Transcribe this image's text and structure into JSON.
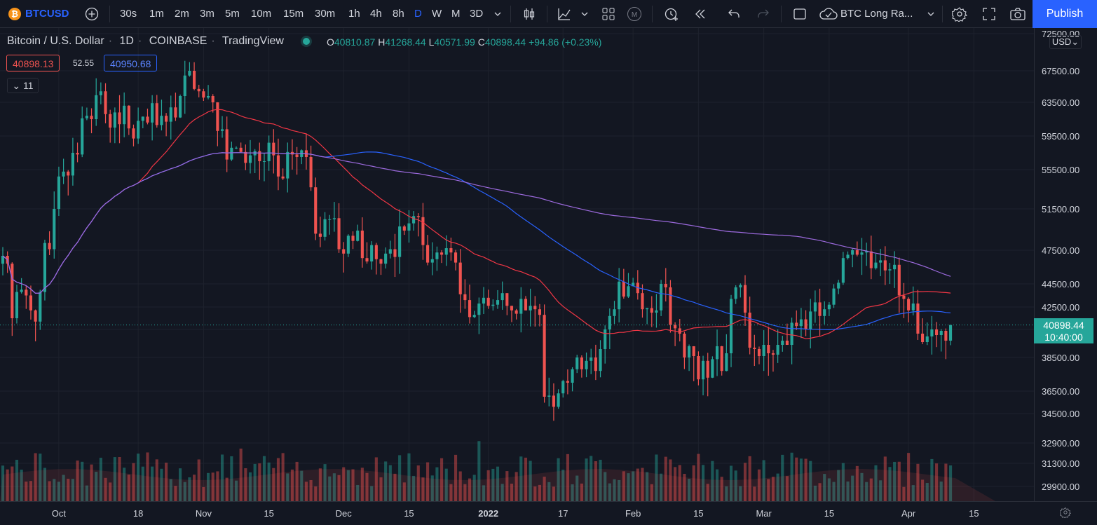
{
  "toolbar": {
    "symbol": "BTCUSD",
    "intervals": [
      "30s",
      "1m",
      "2m",
      "3m",
      "5m",
      "10m",
      "15m",
      "30m",
      "1h",
      "4h",
      "8h",
      "D",
      "W",
      "M",
      "3D"
    ],
    "active_interval": "D",
    "layout_name": "BTC Long Ra...",
    "publish_label": "Publish"
  },
  "legend": {
    "title": "Bitcoin / U.S. Dollar",
    "interval": "1D",
    "exchange": "COINBASE",
    "provider": "TradingView",
    "open_label": "O",
    "open": "40810.87",
    "high_label": "H",
    "high": "41268.44",
    "low_label": "L",
    "low": "40571.99",
    "close_label": "C",
    "close": "40898.44",
    "change": "+94.86 (+0.23%)",
    "bid": "40898.13",
    "spread": "52.55",
    "ask": "40950.68",
    "indicators_count": "11"
  },
  "price_axis": {
    "currency": "USD",
    "last_price": "40898.44",
    "countdown": "10:40:00"
  },
  "colors": {
    "up": "#26a69a",
    "down": "#ef5350",
    "ma_red": "#f23645",
    "ma_blue": "#2962ff",
    "ma_purple": "#9c6ade",
    "background": "#131722"
  },
  "chart_data": {
    "type": "candlestick",
    "title": "Bitcoin / U.S. Dollar",
    "interval": "1D",
    "ylim": [
      29000,
      72500
    ],
    "y_ticks": [
      "72500.00",
      "67500.00",
      "63500.00",
      "59500.00",
      "55500.00",
      "51500.00",
      "47500.00",
      "44500.00",
      "42500.00",
      "40500.00",
      "38500.00",
      "36500.00",
      "34500.00",
      "32900.00",
      "31300.00",
      "29900.00"
    ],
    "x_ticks": [
      {
        "label": "Oct",
        "day": "2021-10-01"
      },
      {
        "label": "18",
        "day": "2021-10-18"
      },
      {
        "label": "Nov",
        "day": "2021-11-01"
      },
      {
        "label": "15",
        "day": "2021-11-15"
      },
      {
        "label": "Dec",
        "day": "2021-12-01"
      },
      {
        "label": "15",
        "day": "2021-12-15"
      },
      {
        "label": "2022",
        "day": "2022-01-01"
      },
      {
        "label": "17",
        "day": "2022-01-17"
      },
      {
        "label": "Feb",
        "day": "2022-02-01"
      },
      {
        "label": "15",
        "day": "2022-02-15"
      },
      {
        "label": "Mar",
        "day": "2022-03-01"
      },
      {
        "label": "15",
        "day": "2022-03-15"
      },
      {
        "label": "Apr",
        "day": "2022-04-01"
      },
      {
        "label": "15",
        "day": "2022-04-15"
      }
    ],
    "closes": [
      47000,
      46300,
      41500,
      43800,
      44000,
      43500,
      42200,
      41200,
      43800,
      48200,
      47600,
      51500,
      54800,
      55300,
      54900,
      57500,
      57300,
      61600,
      61900,
      61500,
      64400,
      64900,
      62100,
      60500,
      62300,
      60900,
      63100,
      60400,
      59200,
      61300,
      61800,
      61100,
      63400,
      60800,
      61900,
      61200,
      62900,
      61700,
      64300,
      66900,
      67500,
      65200,
      64900,
      64100,
      64300,
      63500,
      60100,
      60300,
      56700,
      58100,
      58100,
      57600,
      56300,
      57200,
      57700,
      56500,
      56500,
      58700,
      57200,
      54800,
      54600,
      57600,
      57300,
      57000,
      57800,
      57000,
      53700,
      49100,
      48800,
      50500,
      50500,
      50600,
      47600,
      47200,
      48900,
      48400,
      49400,
      46800,
      46500,
      48000,
      46700,
      46300,
      47200,
      47600,
      46900,
      49800,
      49400,
      50100,
      50800,
      50700,
      48000,
      46400,
      46700,
      47300,
      47100,
      47700,
      47300,
      46400,
      43600,
      43100,
      41600,
      41800,
      42800,
      43300,
      42600,
      42700,
      43100,
      43700,
      42600,
      42200,
      41900,
      43200,
      42200,
      42600,
      42300,
      41800,
      36000,
      36100,
      35100,
      36300,
      37100,
      37000,
      37800,
      38500,
      37800,
      38300,
      38500,
      37700,
      39100,
      40500,
      41700,
      42300,
      44700,
      43400,
      44300,
      44600,
      43700,
      42300,
      42400,
      42000,
      42200,
      44500,
      44200,
      40900,
      40600,
      40200,
      38500,
      39300,
      38600,
      37200,
      38300,
      37300,
      38400,
      39300,
      37700,
      38800,
      43200,
      44200,
      44400,
      42000,
      39200,
      39100,
      38600,
      39400,
      38800,
      38700,
      39400,
      39700,
      39400,
      41100,
      40800,
      41400,
      40500,
      42100,
      42900,
      41700,
      42300,
      42700,
      44100,
      44600,
      46800,
      47100,
      47500,
      47100,
      47300,
      47400,
      45900,
      46400,
      46600,
      45700,
      45800,
      46200,
      43500,
      43200,
      42200,
      42800,
      40200,
      39600,
      40000,
      40500,
      40100,
      40400,
      39700,
      40900
    ],
    "ma_red_span": "from ~44500 (early Oct) rising to ~60600 (early Dec), then falling to ~40100 (Mar), ending ~42200",
    "ma_blue_span": "from ~40900 (early Oct) rising to ~54900 (early Jan), falling to ~41000 (mid Apr)",
    "ma_purple_span": "from ~45500 (Oct) rising to ~49400 (Feb-Mar), ending ~48100"
  }
}
